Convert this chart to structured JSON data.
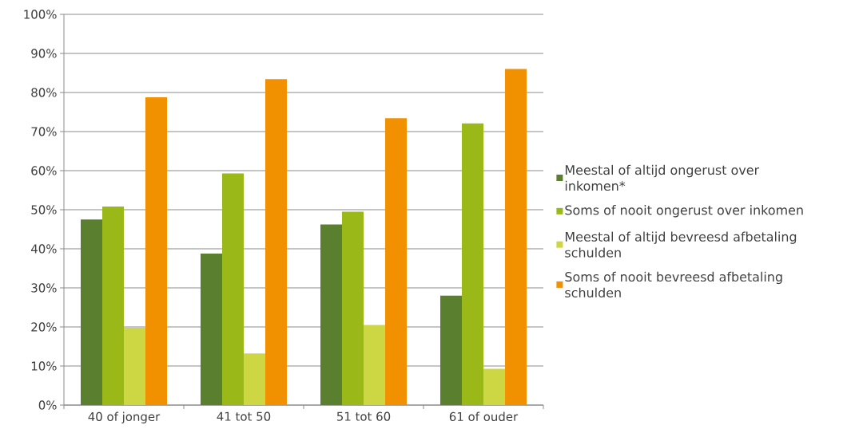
{
  "chart_data": {
    "type": "bar",
    "categories": [
      "40 of jonger",
      "41 tot 50",
      "51 tot 60",
      "61 of ouder"
    ],
    "series": [
      {
        "name": "Meestal of altijd ongerust over inkomen*",
        "color": "#5a7f2f",
        "values": [
          47.5,
          38.8,
          46.2,
          28.0
        ]
      },
      {
        "name": "Soms of nooit ongerust over inkomen",
        "color": "#9ab818",
        "values": [
          50.8,
          59.3,
          49.5,
          72.1
        ]
      },
      {
        "name": "Meestal of altijd bevreesd afbetaling schulden",
        "color": "#cdd743",
        "values": [
          19.8,
          13.2,
          20.5,
          9.3
        ]
      },
      {
        "name": "Soms of nooit bevreesd afbetaling schulden",
        "color": "#f29100",
        "values": [
          78.8,
          83.4,
          73.4,
          86.0
        ]
      }
    ],
    "ylim": [
      0,
      100
    ],
    "yticks": [
      {
        "value": 0,
        "label": "0%"
      },
      {
        "value": 10,
        "label": "10%"
      },
      {
        "value": 20,
        "label": "20%"
      },
      {
        "value": 30,
        "label": "30%"
      },
      {
        "value": 40,
        "label": "40%"
      },
      {
        "value": 50,
        "label": "50%"
      },
      {
        "value": 60,
        "label": "60%"
      },
      {
        "value": 70,
        "label": "70%"
      },
      {
        "value": 80,
        "label": "80%"
      },
      {
        "value": 90,
        "label": "90%"
      },
      {
        "value": 100,
        "label": "100%"
      }
    ],
    "grid": "y",
    "legend": "right"
  }
}
